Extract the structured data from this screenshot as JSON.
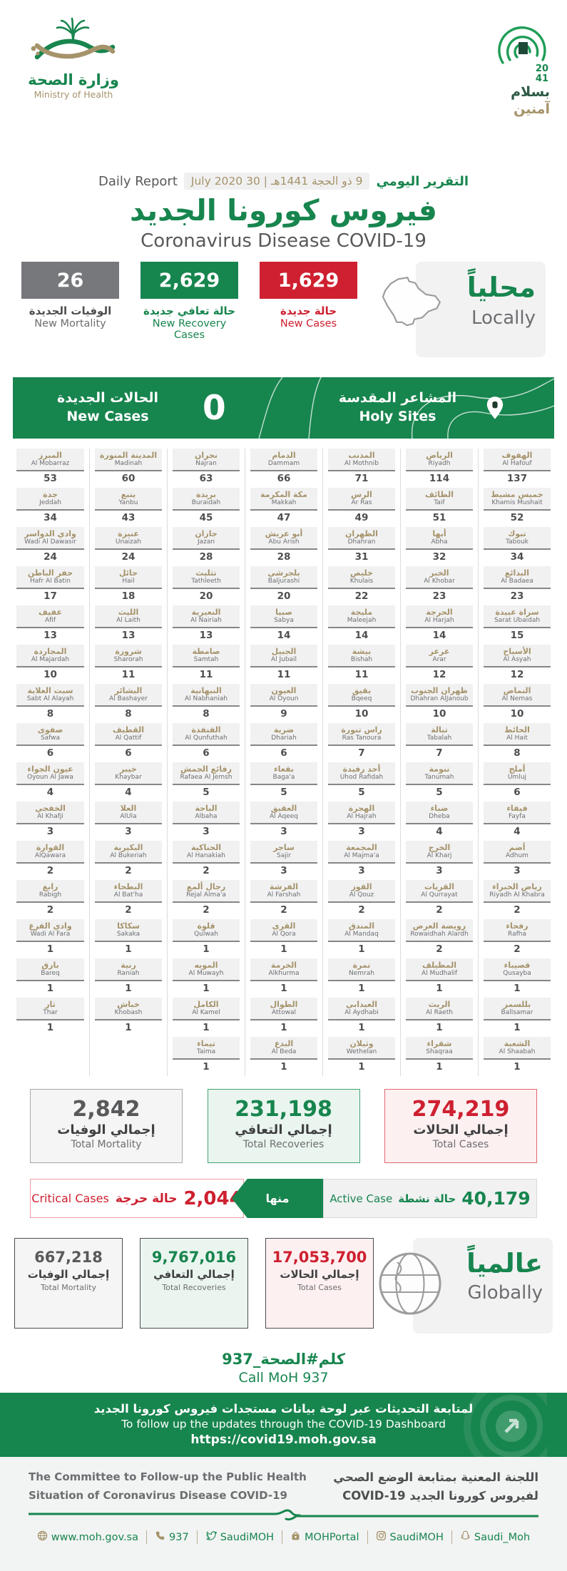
{
  "colors": {
    "green": "#17854E",
    "dark_green": "#1D4A37",
    "red": "#CE2030",
    "gray": "#77787B",
    "tan": "#A5936A",
    "light_bg": "#F2F2F3"
  },
  "header": {
    "moh_logo": {
      "title_ar": "وزارة الصحة",
      "title_en": "Ministry of Health"
    },
    "vision_logo": {
      "year_top": "20",
      "year_bottom": "41",
      "slogan_line1": "بسلام",
      "slogan_line2": "آمنين"
    }
  },
  "report": {
    "daily_report_en": "Daily Report",
    "daily_report_ar": "التقرير اليومي",
    "date": "9 ذو الحجة 1441هـ | 30 July 2020",
    "title_ar": "فيروس كورونا الجديد",
    "title_en": "Coronavirus Disease COVID-19"
  },
  "locally": {
    "label_ar": "محلياً",
    "label_en": "Locally",
    "new_mortality": {
      "value": "26",
      "label_ar": "الوفيات الجديدة",
      "label_en": "New Mortality"
    },
    "new_recoveries": {
      "value": "2,629",
      "label_ar": "حالة تعافي جديدة",
      "label_en": "New Recovery Cases"
    },
    "new_cases": {
      "value": "1,629",
      "label_ar": "حالة جديدة",
      "label_en": "New Cases"
    }
  },
  "holy_sites": {
    "new_cases_ar": "الحالات الجديدة",
    "new_cases_en": "New Cases",
    "value": "0",
    "label_ar": "المشاعر المقدسة",
    "label_en": "Holy Sites"
  },
  "cities": {
    "columns": [
      {
        "cells": [
          {
            "ar": "المبرز",
            "en": "Al Mobarraz",
            "value": "53"
          },
          {
            "ar": "جدة",
            "en": "Jeddah",
            "value": "34"
          },
          {
            "ar": "وادي الدواسر",
            "en": "Wadi Al Dawasir",
            "value": "24"
          },
          {
            "ar": "حفر الباطن",
            "en": "Hafr Al Batin",
            "value": "17"
          },
          {
            "ar": "عفيف",
            "en": "Afif",
            "value": "13"
          },
          {
            "ar": "المجاردة",
            "en": "Al Majardah",
            "value": "10"
          },
          {
            "ar": "سبت العلاية",
            "en": "Sabt Al Alayah",
            "value": "8"
          },
          {
            "ar": "صفوى",
            "en": "Safwa",
            "value": "6"
          },
          {
            "ar": "عيون الجواء",
            "en": "Oyoun Al Jawa",
            "value": "4"
          },
          {
            "ar": "الخفجي",
            "en": "Al Khafji",
            "value": "3"
          },
          {
            "ar": "القوارة",
            "en": "AlQawara",
            "value": "2"
          },
          {
            "ar": "رابغ",
            "en": "Rabigh",
            "value": "2"
          },
          {
            "ar": "وادي الفرع",
            "en": "Wadi Al Fara",
            "value": "1"
          },
          {
            "ar": "بارق",
            "en": "Bareq",
            "value": "1"
          },
          {
            "ar": "ثار",
            "en": "Thar",
            "value": "1"
          }
        ]
      },
      {
        "cells": [
          {
            "ar": "المدينة المنورة",
            "en": "Madinah",
            "value": "60"
          },
          {
            "ar": "ينبع",
            "en": "Yanbu",
            "value": "43"
          },
          {
            "ar": "عنيزة",
            "en": "Unaizah",
            "value": "24"
          },
          {
            "ar": "حائل",
            "en": "Hail",
            "value": "18"
          },
          {
            "ar": "الليث",
            "en": "Al Laith",
            "value": "13"
          },
          {
            "ar": "شرورة",
            "en": "Sharorah",
            "value": "11"
          },
          {
            "ar": "البشائر",
            "en": "Al Bashayer",
            "value": "8"
          },
          {
            "ar": "القطيف",
            "en": "Al Qattif",
            "value": "6"
          },
          {
            "ar": "خيبر",
            "en": "Khaybar",
            "value": "4"
          },
          {
            "ar": "العلا",
            "en": "AlUla",
            "value": "3"
          },
          {
            "ar": "البكيرية",
            "en": "Al Bukeriah",
            "value": "2"
          },
          {
            "ar": "البطحاء",
            "en": "Al Bat'ha",
            "value": "2"
          },
          {
            "ar": "سكاكا",
            "en": "Sakaka",
            "value": "1"
          },
          {
            "ar": "رنية",
            "en": "Raniah",
            "value": "1"
          },
          {
            "ar": "خباش",
            "en": "Khobash",
            "value": "1"
          }
        ]
      },
      {
        "cells": [
          {
            "ar": "نجران",
            "en": "Najran",
            "value": "63"
          },
          {
            "ar": "بريدة",
            "en": "Buraidah",
            "value": "45"
          },
          {
            "ar": "جازان",
            "en": "Jazan",
            "value": "28"
          },
          {
            "ar": "تثليث",
            "en": "Tathleeth",
            "value": "20"
          },
          {
            "ar": "النعيرية",
            "en": "Al Nairiah",
            "value": "13"
          },
          {
            "ar": "صامطة",
            "en": "Samtah",
            "value": "11"
          },
          {
            "ar": "النبهانية",
            "en": "Al Nabhaniah",
            "value": "8"
          },
          {
            "ar": "القنفذة",
            "en": "Al Qunfuthah",
            "value": "6"
          },
          {
            "ar": "رفائع الجمش",
            "en": "Rafaea Al Jemsh",
            "value": "5"
          },
          {
            "ar": "الباحة",
            "en": "Albaha",
            "value": "3"
          },
          {
            "ar": "الحناكية",
            "en": "Al Hanakiah",
            "value": "2"
          },
          {
            "ar": "رجال ألمع",
            "en": "Rejal Alma'a",
            "value": "2"
          },
          {
            "ar": "قلوة",
            "en": "Qulwah",
            "value": "1"
          },
          {
            "ar": "المويه",
            "en": "Al Muwayh",
            "value": "1"
          },
          {
            "ar": "الكامل",
            "en": "Al Kamel",
            "value": "1"
          },
          {
            "ar": "تيماء",
            "en": "Taima",
            "value": "1"
          }
        ]
      },
      {
        "cells": [
          {
            "ar": "الدمام",
            "en": "Dammam",
            "value": "66"
          },
          {
            "ar": "مكة المكرمة",
            "en": "Makkah",
            "value": "47"
          },
          {
            "ar": "أبو عريش",
            "en": "Abu Arish",
            "value": "28"
          },
          {
            "ar": "بلجرشي",
            "en": "Baljurashi",
            "value": "20"
          },
          {
            "ar": "صبيا",
            "en": "Sabya",
            "value": "14"
          },
          {
            "ar": "الجبيل",
            "en": "Al Jubail",
            "value": "11"
          },
          {
            "ar": "العيون",
            "en": "Al Oyoun",
            "value": "9"
          },
          {
            "ar": "ضرية",
            "en": "Dhariah",
            "value": "6"
          },
          {
            "ar": "بقعاء",
            "en": "Baga'a",
            "value": "5"
          },
          {
            "ar": "العقيق",
            "en": "Al Aqeeq",
            "value": "3"
          },
          {
            "ar": "ساجر",
            "en": "Sajir",
            "value": "3"
          },
          {
            "ar": "الفرشة",
            "en": "Al Farshah",
            "value": "2"
          },
          {
            "ar": "القرى",
            "en": "Al Qora",
            "value": "1"
          },
          {
            "ar": "الخرمة",
            "en": "Alkhurma",
            "value": "1"
          },
          {
            "ar": "الطوال",
            "en": "Attowal",
            "value": "1"
          },
          {
            "ar": "البدع",
            "en": "Al Beda",
            "value": "1"
          }
        ]
      },
      {
        "cells": [
          {
            "ar": "المذنب",
            "en": "Al Mothnib",
            "value": "71"
          },
          {
            "ar": "الرس",
            "en": "Ar Ras",
            "value": "49"
          },
          {
            "ar": "الظهران",
            "en": "Dhahran",
            "value": "31"
          },
          {
            "ar": "خليص",
            "en": "Khulais",
            "value": "22"
          },
          {
            "ar": "مليجة",
            "en": "Maleejah",
            "value": "14"
          },
          {
            "ar": "بيشة",
            "en": "Bishah",
            "value": "11"
          },
          {
            "ar": "بقيق",
            "en": "Bqeeq",
            "value": "10"
          },
          {
            "ar": "راس تنورة",
            "en": "Ras Tanoura",
            "value": "7"
          },
          {
            "ar": "أحد رفيدة",
            "en": "Uhod Rafidah",
            "value": "5"
          },
          {
            "ar": "الهجرة",
            "en": "Al Hajrah",
            "value": "3"
          },
          {
            "ar": "المجمعة",
            "en": "Al Majma'a",
            "value": "3"
          },
          {
            "ar": "القوز",
            "en": "Al Qouz",
            "value": "2"
          },
          {
            "ar": "المندق",
            "en": "Al Mandaq",
            "value": "1"
          },
          {
            "ar": "نمرة",
            "en": "Nemrah",
            "value": "1"
          },
          {
            "ar": "العيدابي",
            "en": "Al Aydhabi",
            "value": "1"
          },
          {
            "ar": "وثيلان",
            "en": "Wethelan",
            "value": "1"
          }
        ]
      },
      {
        "cells": [
          {
            "ar": "الرياض",
            "en": "Riyadh",
            "value": "114"
          },
          {
            "ar": "الطائف",
            "en": "Taif",
            "value": "51"
          },
          {
            "ar": "أبها",
            "en": "Abha",
            "value": "32"
          },
          {
            "ar": "الخبر",
            "en": "Al Khobar",
            "value": "23"
          },
          {
            "ar": "الحرجة",
            "en": "Al Harjah",
            "value": "14"
          },
          {
            "ar": "عرعر",
            "en": "Arar",
            "value": "12"
          },
          {
            "ar": "ظهران الجنوب",
            "en": "Dhahran AlJanoub",
            "value": "10"
          },
          {
            "ar": "تبالة",
            "en": "Tabalah",
            "value": "7"
          },
          {
            "ar": "تنومة",
            "en": "Tanumah",
            "value": "5"
          },
          {
            "ar": "ضباء",
            "en": "Dheba",
            "value": "4"
          },
          {
            "ar": "الخرج",
            "en": "Al Kharj",
            "value": "3"
          },
          {
            "ar": "القريات",
            "en": "Al Qurrayat",
            "value": "2"
          },
          {
            "ar": "رويضة العرض",
            "en": "Rowaidhah Alardh",
            "value": "2"
          },
          {
            "ar": "المظيلف",
            "en": "Al Mudhalif",
            "value": "1"
          },
          {
            "ar": "الريث",
            "en": "Al Raeth",
            "value": "1"
          },
          {
            "ar": "شقراء",
            "en": "Shaqraa",
            "value": "1"
          }
        ]
      },
      {
        "cells": [
          {
            "ar": "الهفوف",
            "en": "Al Hafouf",
            "value": "137"
          },
          {
            "ar": "خميس مشيط",
            "en": "Khamis Mushait",
            "value": "52"
          },
          {
            "ar": "تبوك",
            "en": "Tabouk",
            "value": "34"
          },
          {
            "ar": "البدائع",
            "en": "Al Badaea",
            "value": "23"
          },
          {
            "ar": "سراة عبيدة",
            "en": "Sarat Ubaidah",
            "value": "15"
          },
          {
            "ar": "الأسياح",
            "en": "Al Asyah",
            "value": "12"
          },
          {
            "ar": "النماص",
            "en": "Al Nemas",
            "value": "10"
          },
          {
            "ar": "الحائط",
            "en": "Al Hait",
            "value": "8"
          },
          {
            "ar": "أملج",
            "en": "Umluj",
            "value": "6"
          },
          {
            "ar": "فيفاء",
            "en": "Fayfa",
            "value": "4"
          },
          {
            "ar": "أضم",
            "en": "Adhum",
            "value": "3"
          },
          {
            "ar": "رياض الخبراء",
            "en": "Riyadh Al Khabra",
            "value": "2"
          },
          {
            "ar": "رفحاء",
            "en": "Rafha",
            "value": "2"
          },
          {
            "ar": "قصيباء",
            "en": "Qusayba",
            "value": "1"
          },
          {
            "ar": "بللسمر",
            "en": "Ballsamar",
            "value": "1"
          },
          {
            "ar": "الشعبة",
            "en": "Al Shaabah",
            "value": "1"
          }
        ]
      }
    ]
  },
  "totals": {
    "mortality": {
      "value": "2,842",
      "label_ar": "إجمالي الوفيات",
      "label_en": "Total Mortality"
    },
    "recoveries": {
      "value": "231,198",
      "label_ar": "إجمالي التعافي",
      "label_en": "Total Recoveries"
    },
    "cases": {
      "value": "274,219",
      "label_ar": "إجمالي الحالات",
      "label_en": "Total Cases"
    }
  },
  "active": {
    "value": "40,179",
    "label_ar": "حالة نشطة",
    "label_en": "Active Case",
    "of_which_ar": "منها",
    "critical_value": "2,044",
    "critical_ar": "حالة حرجة",
    "critical_en": "Critical Cases"
  },
  "globally": {
    "label_ar": "عالمياً",
    "label_en": "Globally",
    "mortality": {
      "value": "667,218",
      "label_ar": "إجمالي الوفيات",
      "label_en": "Total Mortality"
    },
    "recoveries": {
      "value": "9,767,016",
      "label_ar": "إجمالي التعافي",
      "label_en": "Total Recoveries"
    },
    "cases": {
      "value": "17,053,700",
      "label_ar": "إجمالي الحالات",
      "label_en": "Total Cases"
    }
  },
  "call": {
    "ar": "كلم#الصحة_937",
    "en": "Call MoH 937"
  },
  "dashboard": {
    "ar": "لمتابعة التحديثات عبر لوحة بيانات مستجدات فيروس كورونا الجديد",
    "en": "To follow up the updates through the COVID-19 Dashboard",
    "url": "https://covid19.moh.gov.sa"
  },
  "committee": {
    "en_line1": "The Committee to Follow-up the Public Health",
    "en_line2": "Situation of Coronavirus Disease COVID-19",
    "ar_line1": "اللجنة المعنية بمتابعة الوضع الصحي",
    "ar_line2": "لفيروس كورونا الجديد COVID-19"
  },
  "contacts": [
    {
      "icon": "globe-icon",
      "label": "www.moh.gov.sa"
    },
    {
      "icon": "phone-icon",
      "label": "937"
    },
    {
      "icon": "twitter-icon",
      "label": "SaudiMOH"
    },
    {
      "icon": "app-icon",
      "label": "MOHPortal"
    },
    {
      "icon": "instagram-icon",
      "label": "SaudiMOH"
    },
    {
      "icon": "snapchat-icon",
      "label": "Saudi_Moh"
    }
  ]
}
